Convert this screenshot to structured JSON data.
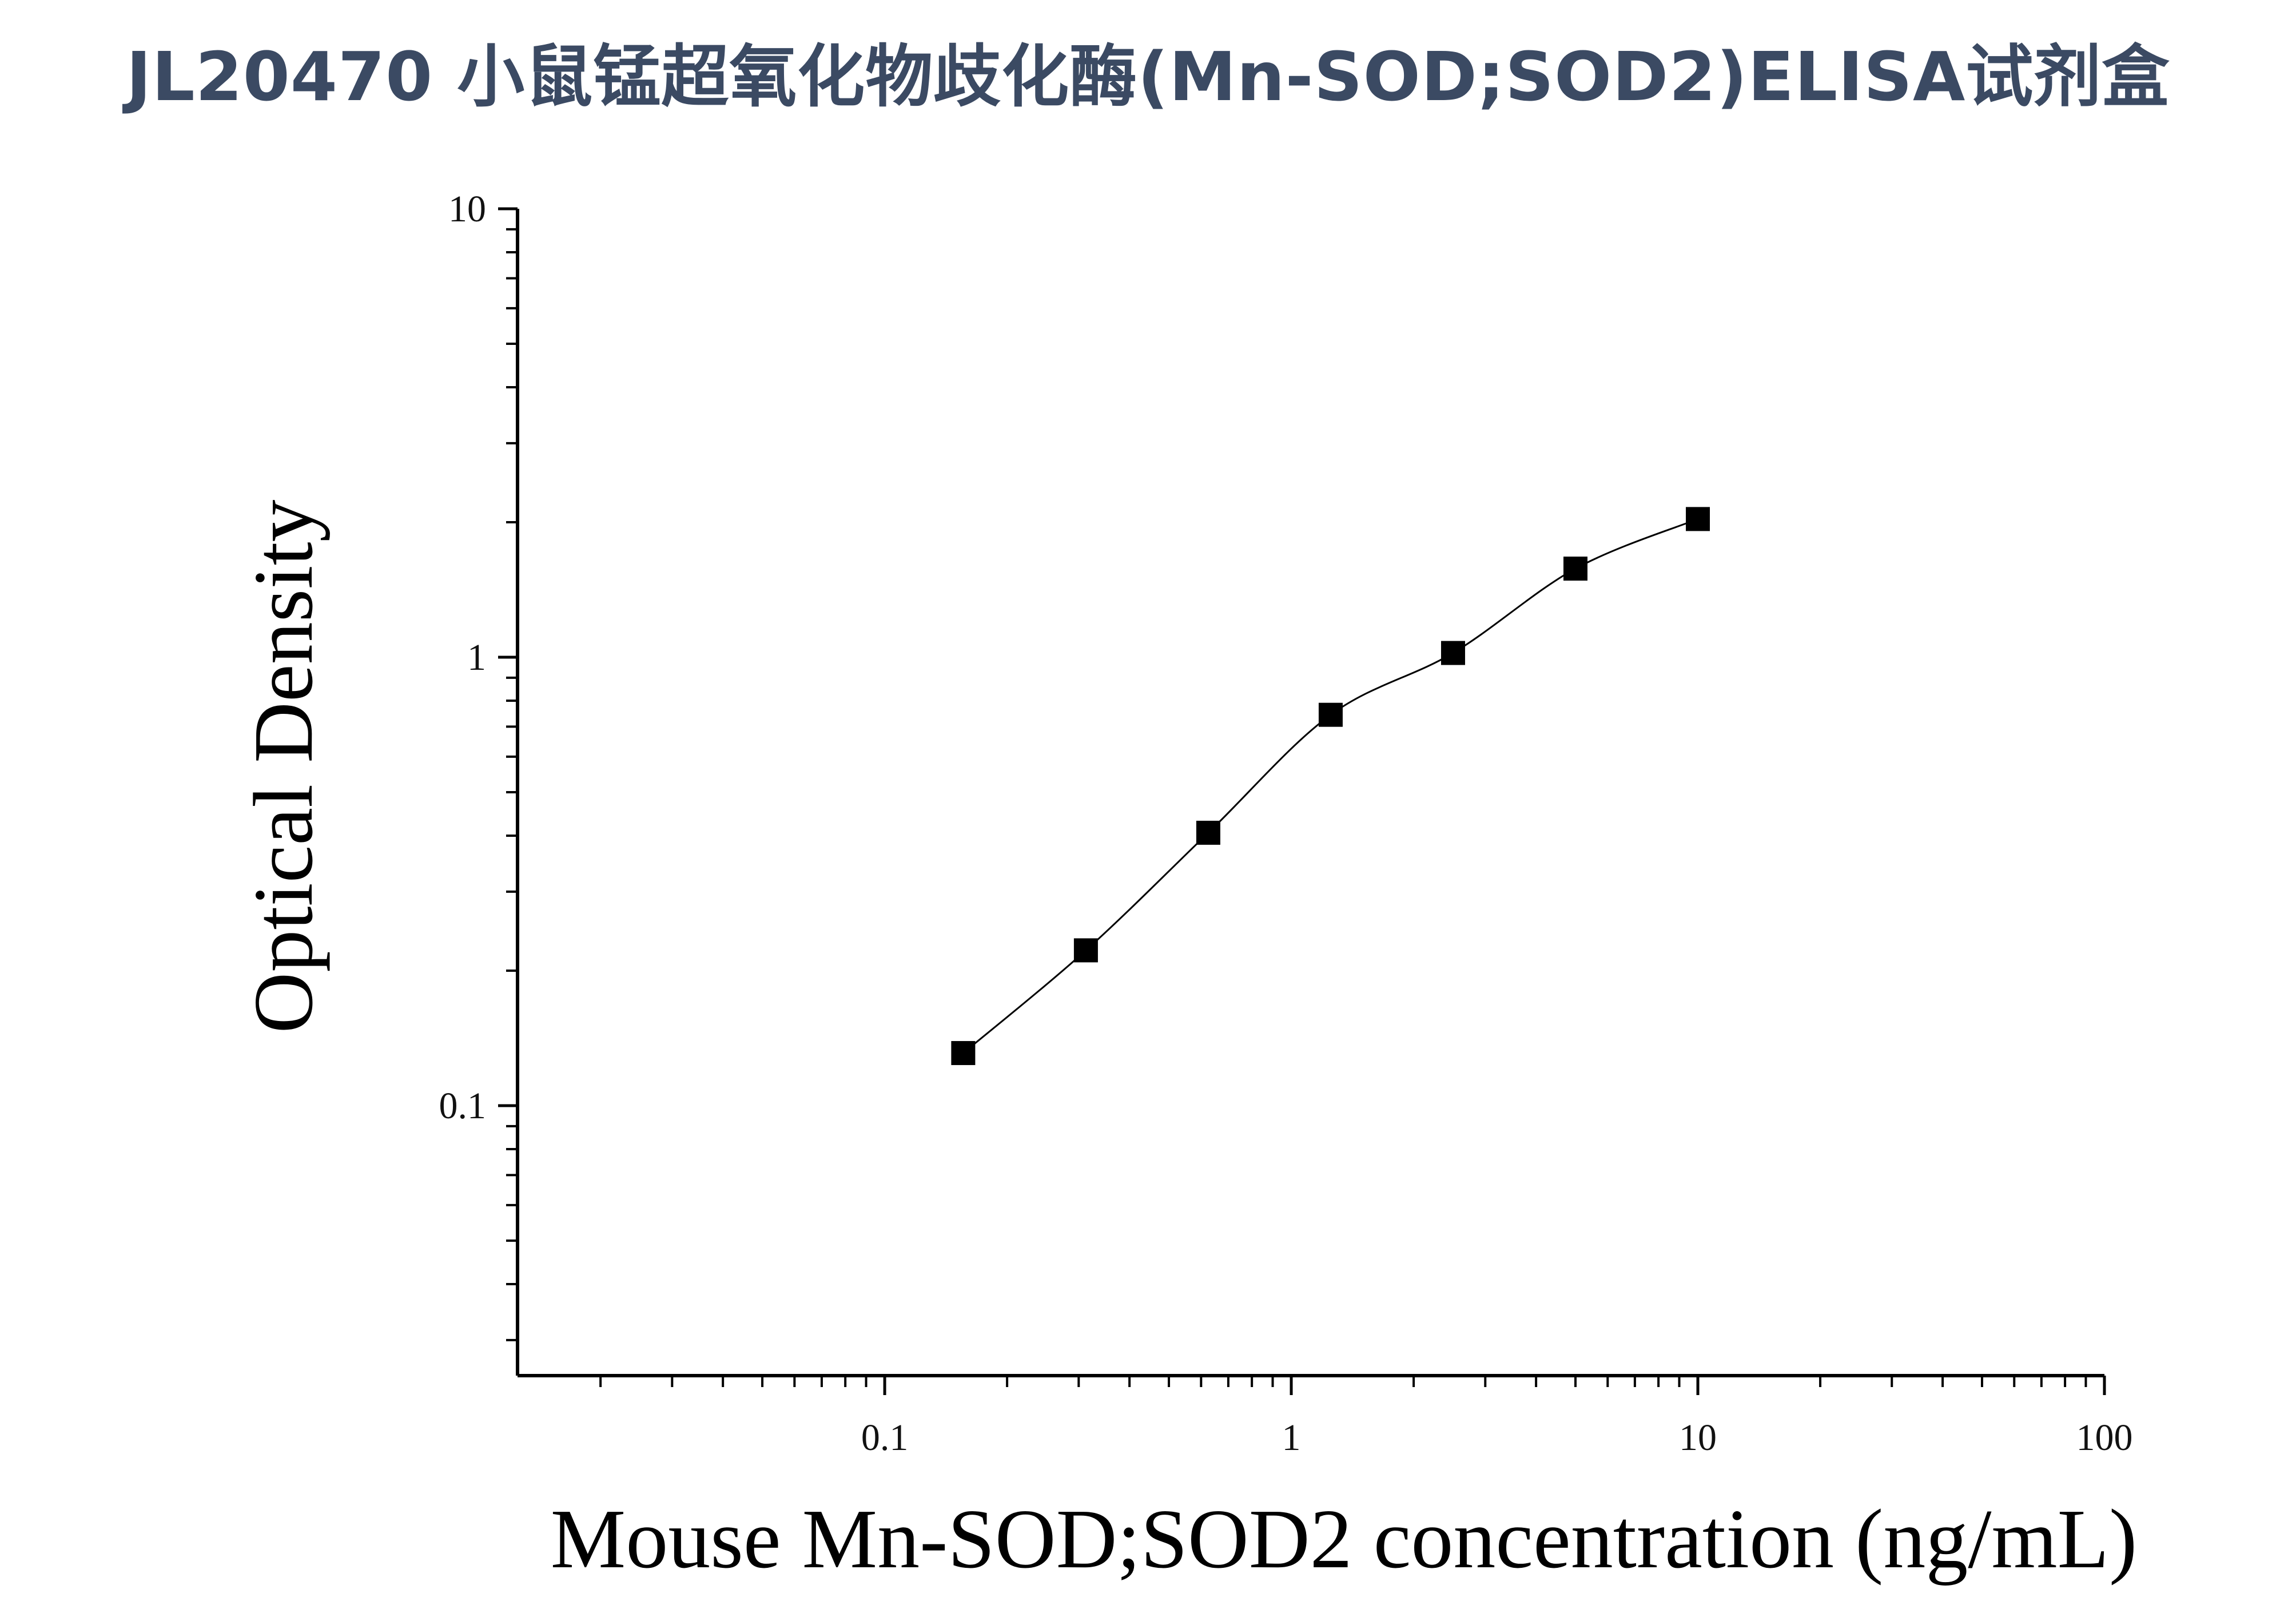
{
  "header": {
    "title": "JL20470 小鼠锰超氧化物歧化酶(Mn-SOD;SOD2)ELISA试剂盒"
  },
  "chart_data": {
    "type": "scatter",
    "title": "JL20470 小鼠锰超氧化物歧化酶(Mn-SOD;SOD2)ELISA试剂盒",
    "xlabel": "Mouse Mn-SOD;SOD2 concentration (ng/mL)",
    "ylabel": "Optical Density",
    "xscale": "log",
    "yscale": "log",
    "xlim": [
      0.0125,
      100
    ],
    "ylim": [
      0.025,
      10
    ],
    "xticks": [
      {
        "value": 0.1,
        "label": "0.1"
      },
      {
        "value": 1,
        "label": "1"
      },
      {
        "value": 10,
        "label": "10"
      },
      {
        "value": 100,
        "label": "100"
      }
    ],
    "yticks": [
      {
        "value": 0.1,
        "label": "0.1"
      },
      {
        "value": 1,
        "label": "1"
      },
      {
        "value": 10,
        "label": "10"
      }
    ],
    "grid": false,
    "marker": "square",
    "marker_color": "#000000",
    "line_color": "#000000",
    "series": [
      {
        "x": [
          0.156,
          0.3125,
          0.625,
          1.25,
          2.5,
          5,
          10
        ],
        "y": [
          0.131,
          0.222,
          0.406,
          0.744,
          1.022,
          1.576,
          2.033
        ]
      }
    ]
  }
}
